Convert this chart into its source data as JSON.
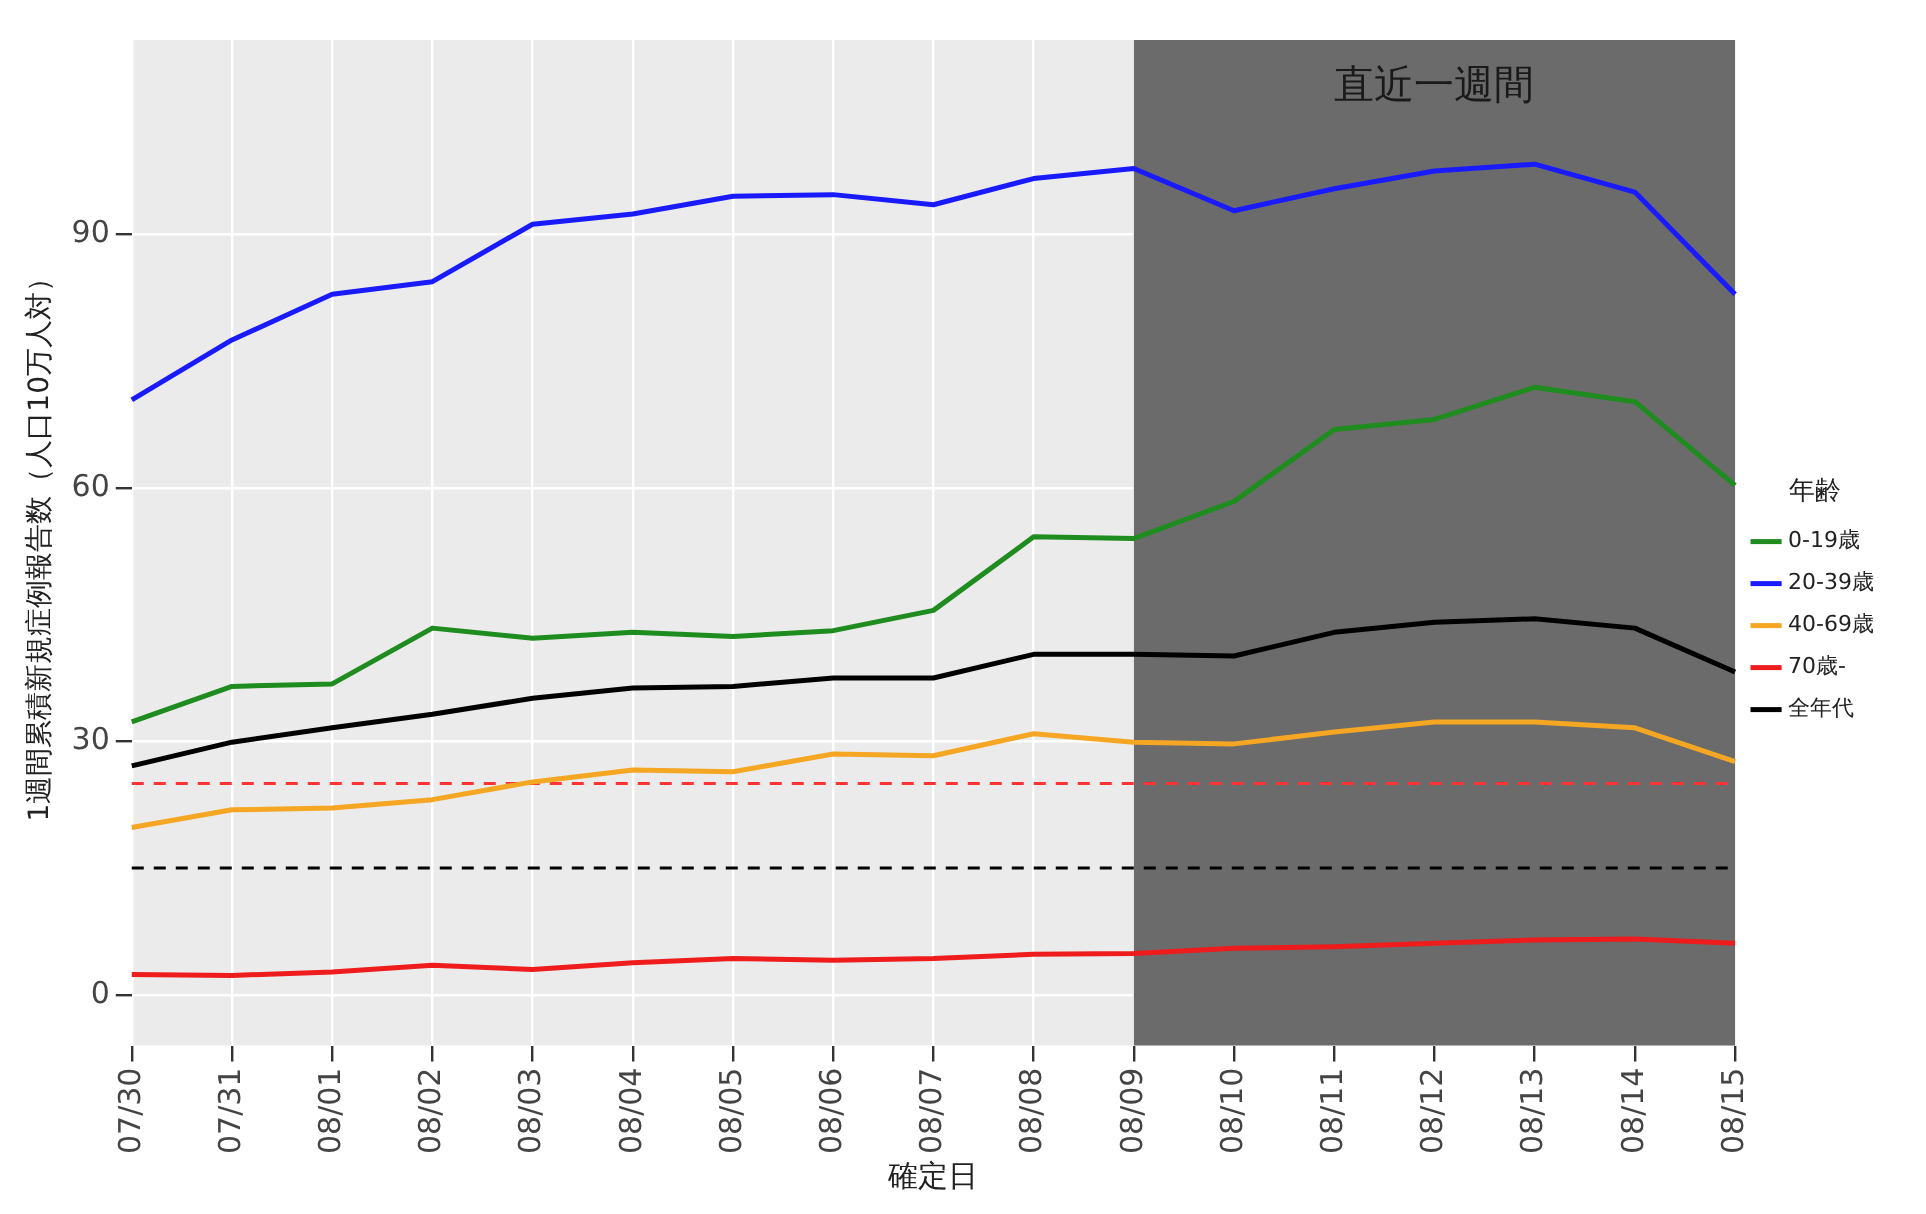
{
  "chart_data": {
    "type": "line",
    "xlabel": "確定日",
    "ylabel": "1週間累積新規症例報告数（人口10万人対）",
    "legend_title": "年齢",
    "legend": "right",
    "grid": true,
    "marker": "none",
    "line_style": "solid",
    "categories": [
      "07/30",
      "07/31",
      "08/01",
      "08/02",
      "08/03",
      "08/04",
      "08/05",
      "08/06",
      "08/07",
      "08/08",
      "08/09",
      "08/10",
      "08/11",
      "08/12",
      "08/13",
      "08/14",
      "08/15"
    ],
    "ylim": [
      -6,
      113
    ],
    "yticks": [
      0,
      30,
      60,
      90
    ],
    "series": [
      {
        "name": "0-19歳",
        "color": "#1f8c1f",
        "values": [
          32.3,
          36.5,
          36.8,
          43.4,
          42.2,
          42.9,
          42.4,
          43.1,
          45.5,
          54.2,
          54.0,
          58.4,
          66.9,
          68.1,
          71.9,
          70.2,
          60.3
        ]
      },
      {
        "name": "20-39歳",
        "color": "#1a1aff",
        "values": [
          70.4,
          77.5,
          82.9,
          84.4,
          91.2,
          92.4,
          94.5,
          94.7,
          93.5,
          96.6,
          97.8,
          92.8,
          95.4,
          97.5,
          98.3,
          95.0,
          82.9
        ]
      },
      {
        "name": "40-69歳",
        "color": "#f5a623",
        "values": [
          19.8,
          21.9,
          22.1,
          23.1,
          25.2,
          26.6,
          26.4,
          28.5,
          28.3,
          30.9,
          29.9,
          29.7,
          31.1,
          32.3,
          32.3,
          31.6,
          27.6
        ]
      },
      {
        "name": "70歳-",
        "color": "#ee1c1c",
        "values": [
          2.4,
          2.3,
          2.7,
          3.5,
          3.0,
          3.8,
          4.3,
          4.1,
          4.3,
          4.8,
          4.9,
          5.5,
          5.7,
          6.1,
          6.5,
          6.6,
          6.1
        ]
      },
      {
        "name": "全年代",
        "color": "#000000",
        "values": [
          27.1,
          29.9,
          31.6,
          33.2,
          35.1,
          36.3,
          36.5,
          37.5,
          37.5,
          40.3,
          40.3,
          40.1,
          42.9,
          44.1,
          44.5,
          43.4,
          38.2
        ]
      }
    ],
    "ref_lines": [
      {
        "axis": "y",
        "value": 25,
        "color": "#ff3333",
        "line_style": "dashed"
      },
      {
        "axis": "y",
        "value": 15,
        "color": "#000000",
        "line_style": "dashed"
      }
    ],
    "bands": [
      {
        "axis": "x",
        "from": "08/09",
        "to": "08/15",
        "label": "直近一週間",
        "color": "#6b6b6b"
      }
    ]
  }
}
